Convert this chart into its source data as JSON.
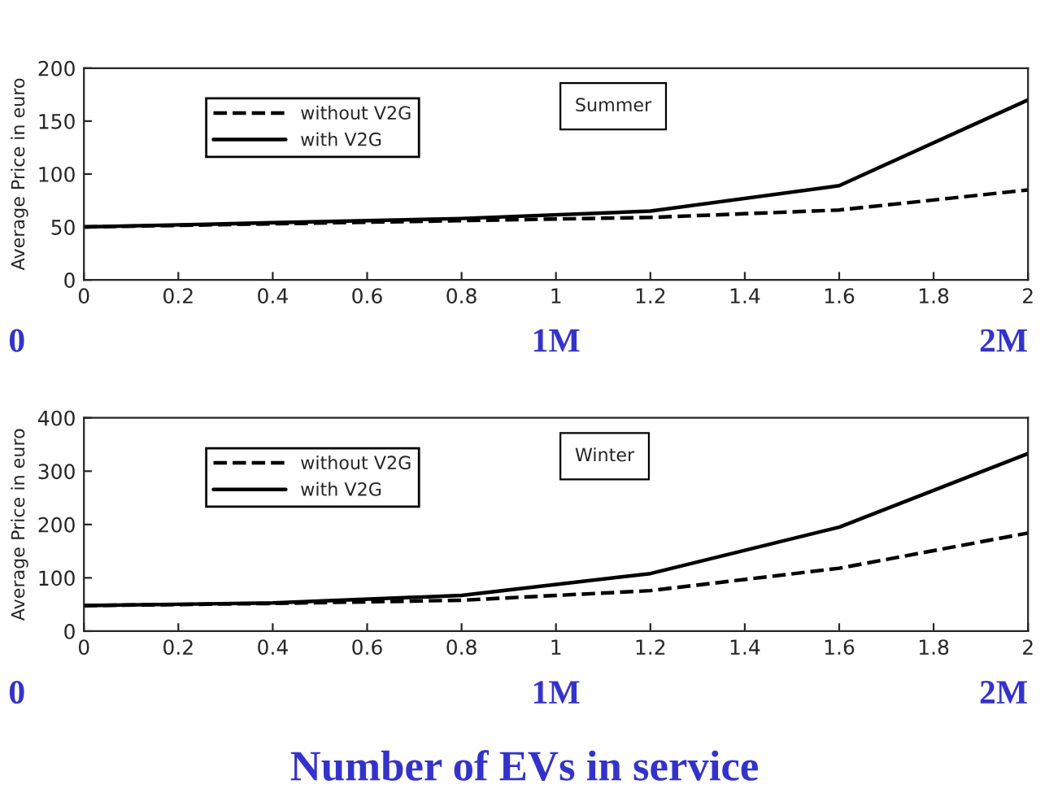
{
  "chart_data": [
    {
      "type": "line",
      "x": [
        0,
        0.4,
        0.8,
        1.2,
        1.6,
        2
      ],
      "ylabel": "Average Price in euro",
      "series": [
        {
          "name": "without V2G",
          "color": "#000000",
          "line_style": "dashed",
          "values": [
            50,
            53,
            56,
            59,
            66,
            85
          ]
        },
        {
          "name": "with V2G",
          "color": "#000000",
          "line_style": "solid",
          "values": [
            50,
            54,
            58,
            65,
            89,
            170
          ]
        }
      ],
      "xlim": [
        0,
        2
      ],
      "xticks": [
        0,
        0.2,
        0.4,
        0.6,
        0.8,
        1,
        1.2,
        1.4,
        1.6,
        1.8,
        2
      ],
      "ylim": [
        0,
        200
      ],
      "yticks": [
        0,
        50,
        100,
        150,
        200
      ],
      "legend": "top left",
      "grid": false,
      "marker": "none",
      "annotations": [
        "Summer",
        "0",
        "1M",
        "2M"
      ]
    },
    {
      "type": "line",
      "x": [
        0,
        0.4,
        0.8,
        1.2,
        1.6,
        2
      ],
      "ylabel": "Average Price in euro",
      "xlabel": "Number of EVs in service",
      "series": [
        {
          "name": "without V2G",
          "color": "#000000",
          "line_style": "dashed",
          "values": [
            48,
            52,
            58,
            76,
            118,
            184
          ]
        },
        {
          "name": "with V2G",
          "color": "#000000",
          "line_style": "solid",
          "values": [
            48,
            53,
            67,
            108,
            195,
            333
          ]
        }
      ],
      "xlim": [
        0,
        2
      ],
      "xticks": [
        0,
        0.2,
        0.4,
        0.6,
        0.8,
        1,
        1.2,
        1.4,
        1.6,
        1.8,
        2
      ],
      "ylim": [
        0,
        400
      ],
      "yticks": [
        0,
        100,
        200,
        300,
        400
      ],
      "legend": "top left",
      "grid": false,
      "marker": "none",
      "annotations": [
        "Winter",
        "0",
        "1M",
        "2M"
      ]
    }
  ]
}
